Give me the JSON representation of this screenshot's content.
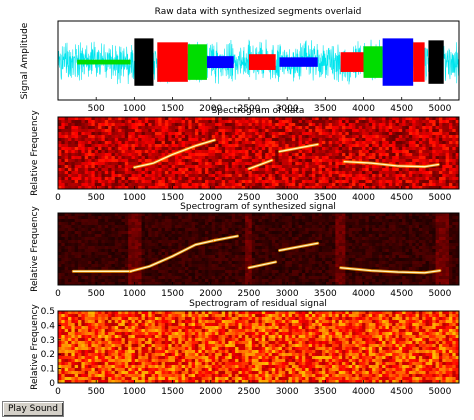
{
  "chart_data": [
    {
      "type": "line",
      "title": "Raw data with synthesized segments overlaid",
      "ylabel": "Signal Amplitude",
      "xlabel": "",
      "xlim": [
        0,
        5250
      ],
      "xticks": [
        500,
        1000,
        1500,
        2000,
        2500,
        3000,
        3500,
        4000,
        4500,
        5000
      ],
      "yticks": [],
      "grid": false,
      "series": [
        {
          "color": "#00e5ee",
          "kind": "noise",
          "x": [
            0,
            5250
          ],
          "amplitude": 0.6
        },
        {
          "color": "#00dd00",
          "x": [
            250,
            950
          ],
          "amplitude": 0.06
        },
        {
          "color": "#000000",
          "x": [
            1000,
            1250
          ],
          "amplitude": 0.6
        },
        {
          "color": "#ff0000",
          "x": [
            1300,
            1700
          ],
          "amplitude": 0.5
        },
        {
          "color": "#00dd00",
          "x": [
            1700,
            1950
          ],
          "amplitude": 0.45
        },
        {
          "color": "#0000ff",
          "x": [
            1950,
            2300
          ],
          "amplitude": 0.15
        },
        {
          "color": "#ff0000",
          "x": [
            2500,
            2850
          ],
          "amplitude": 0.2
        },
        {
          "color": "#0000ff",
          "x": [
            2900,
            3400
          ],
          "amplitude": 0.12
        },
        {
          "color": "#ff0000",
          "x": [
            3700,
            4000
          ],
          "amplitude": 0.25
        },
        {
          "color": "#00dd00",
          "x": [
            4000,
            4250
          ],
          "amplitude": 0.4
        },
        {
          "color": "#0000ff",
          "x": [
            4250,
            4650
          ],
          "amplitude": 0.6
        },
        {
          "color": "#ff0000",
          "x": [
            4650,
            4800
          ],
          "amplitude": 0.5
        },
        {
          "color": "#000000",
          "x": [
            4850,
            5050
          ],
          "amplitude": 0.55
        }
      ]
    },
    {
      "type": "heatmap",
      "title": "Spectrogram of data",
      "ylabel": "Relative Frequency",
      "xlabel": "",
      "xlim": [
        0,
        5250
      ],
      "ylim": [
        0,
        0.5
      ],
      "xticks": [
        0,
        500,
        1000,
        1500,
        2000,
        2500,
        3000,
        3500,
        4000,
        4500,
        5000
      ],
      "yticks": [],
      "background": "noise",
      "tracks": [
        {
          "x": [
            1000,
            1250,
            1500,
            1800,
            2050
          ],
          "y": [
            0.15,
            0.18,
            0.24,
            0.3,
            0.34
          ]
        },
        {
          "x": [
            2500,
            2800
          ],
          "y": [
            0.14,
            0.2
          ]
        },
        {
          "x": [
            2900,
            3400
          ],
          "y": [
            0.26,
            0.31
          ]
        },
        {
          "x": [
            3750,
            4100,
            4450,
            4800,
            4980
          ],
          "y": [
            0.19,
            0.18,
            0.16,
            0.155,
            0.17
          ]
        }
      ]
    },
    {
      "type": "heatmap",
      "title": "Spectrogram of synthesized signal",
      "ylabel": "Relative Frequency",
      "xlabel": "",
      "xlim": [
        0,
        5250
      ],
      "ylim": [
        0,
        0.5
      ],
      "xticks": [
        0,
        500,
        1000,
        1500,
        2000,
        2500,
        3000,
        3500,
        4000,
        4500,
        5000
      ],
      "yticks": [],
      "background": "dark",
      "tracks": [
        {
          "x": [
            200,
            950
          ],
          "y": [
            0.095,
            0.095
          ]
        },
        {
          "x": [
            950,
            1200,
            1500,
            1800,
            2050
          ],
          "y": [
            0.095,
            0.13,
            0.2,
            0.28,
            0.31
          ]
        },
        {
          "x": [
            2050,
            2350
          ],
          "y": [
            0.31,
            0.34
          ]
        },
        {
          "x": [
            2500,
            2850
          ],
          "y": [
            0.12,
            0.16
          ]
        },
        {
          "x": [
            2900,
            3400
          ],
          "y": [
            0.24,
            0.29
          ]
        },
        {
          "x": [
            3700,
            4100,
            4450,
            4800,
            5000
          ],
          "y": [
            0.12,
            0.1,
            0.09,
            0.085,
            0.1
          ]
        }
      ]
    },
    {
      "type": "heatmap",
      "title": "Spectrogram of residual signal",
      "ylabel": "Relative Frequency",
      "xlabel": "",
      "xlim": [
        0,
        5250
      ],
      "ylim": [
        0,
        0.5
      ],
      "xticks": [
        0,
        500,
        1000,
        1500,
        2000,
        2500,
        3000,
        3500,
        4000,
        4500,
        5000
      ],
      "yticks": [
        0,
        0.1,
        0.2,
        0.3,
        0.4,
        0.5
      ],
      "background": "noise-bright",
      "tracks": []
    }
  ],
  "controls": {
    "play_sound_label": "Play Sound"
  },
  "colors": {
    "raw_signal": "#00e5ee",
    "track": "#fff7c0"
  }
}
